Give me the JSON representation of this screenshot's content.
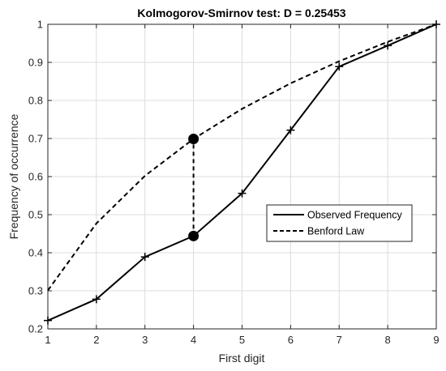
{
  "chart_data": {
    "type": "line",
    "title": "Kolmogorov-Smirnov test: D = 0.25453",
    "xlabel": "First digit",
    "ylabel": "Frequency of occurrence",
    "xlim": [
      1,
      9
    ],
    "ylim": [
      0.2,
      1
    ],
    "xticks": [
      1,
      2,
      3,
      4,
      5,
      6,
      7,
      8,
      9
    ],
    "yticks": [
      0.2,
      0.3,
      0.4,
      0.5,
      0.6,
      0.7,
      0.8,
      0.9,
      1
    ],
    "grid": true,
    "legend_position": "center-right",
    "series": [
      {
        "name": "Observed Frequency",
        "style": "solid-plus-markers",
        "x": [
          1,
          2,
          3,
          4,
          5,
          6,
          7,
          8,
          9
        ],
        "y": [
          0.222,
          0.278,
          0.389,
          0.444,
          0.556,
          0.722,
          0.889,
          0.944,
          1.0
        ]
      },
      {
        "name": "Benford Law",
        "style": "dashed",
        "x": [
          1,
          2,
          3,
          4,
          5,
          6,
          7,
          8,
          9
        ],
        "y": [
          0.301,
          0.477,
          0.602,
          0.699,
          0.778,
          0.845,
          0.903,
          0.954,
          1.0
        ]
      }
    ],
    "ks_statistic": {
      "x": 4,
      "y_low": 0.444,
      "y_high": 0.699
    }
  },
  "colors": {
    "line": "#000000",
    "grid": "#dcdcdc",
    "axis": "#262626",
    "background": "#ffffff"
  }
}
